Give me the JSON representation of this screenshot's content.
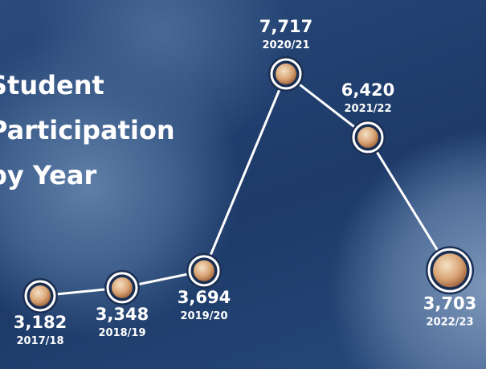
{
  "chart_data": {
    "type": "line",
    "title": "Student Participation by Year",
    "categories": [
      "2017/18",
      "2018/19",
      "2019/20",
      "2020/21",
      "2021/22",
      "2022/23"
    ],
    "values": [
      3182,
      3348,
      3694,
      7717,
      6420,
      3703
    ],
    "value_labels": [
      "3,182",
      "3,348",
      "3,694",
      "7,717",
      "6,420",
      "3,703"
    ],
    "color": "#ffffff"
  }
}
